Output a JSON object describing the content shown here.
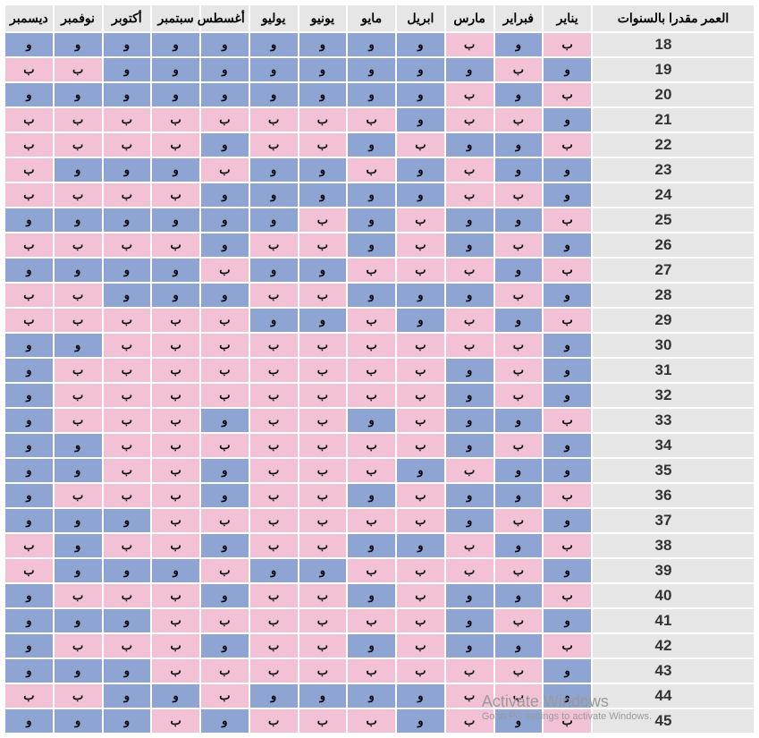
{
  "headers": {
    "age": "العمر مقدرا بالسنوات",
    "months": [
      "يناير",
      "فبراير",
      "مارس",
      "ابريل",
      "مايو",
      "يونيو",
      "يوليو",
      "أغسطس",
      "سبتمبر",
      "أكتوبر",
      "نوفمبر",
      "ديسمبر"
    ]
  },
  "labels": {
    "w": "و",
    "b": "ب"
  },
  "colors": {
    "header_bg": "#e6e6e6",
    "age_bg": "#e6e6e6",
    "w_cell": "#8ea4d2",
    "b_cell": "#f3c1d6",
    "page_bg": "#ffffff",
    "text": "#000000"
  },
  "rows": [
    {
      "age": "18",
      "cells": [
        "b",
        "w",
        "b",
        "w",
        "w",
        "w",
        "w",
        "w",
        "w",
        "w",
        "w",
        "w"
      ]
    },
    {
      "age": "19",
      "cells": [
        "w",
        "b",
        "w",
        "w",
        "w",
        "w",
        "w",
        "w",
        "w",
        "w",
        "b",
        "b"
      ]
    },
    {
      "age": "20",
      "cells": [
        "b",
        "w",
        "b",
        "w",
        "w",
        "w",
        "w",
        "w",
        "w",
        "w",
        "w",
        "w"
      ]
    },
    {
      "age": "21",
      "cells": [
        "w",
        "b",
        "b",
        "w",
        "b",
        "b",
        "b",
        "b",
        "b",
        "b",
        "b",
        "b"
      ]
    },
    {
      "age": "22",
      "cells": [
        "b",
        "w",
        "w",
        "b",
        "w",
        "b",
        "b",
        "w",
        "b",
        "b",
        "b",
        "b"
      ]
    },
    {
      "age": "23",
      "cells": [
        "w",
        "w",
        "b",
        "w",
        "b",
        "w",
        "w",
        "b",
        "w",
        "w",
        "w",
        "b"
      ]
    },
    {
      "age": "24",
      "cells": [
        "w",
        "b",
        "b",
        "w",
        "w",
        "w",
        "w",
        "w",
        "b",
        "b",
        "b",
        "b"
      ]
    },
    {
      "age": "25",
      "cells": [
        "b",
        "w",
        "w",
        "b",
        "w",
        "b",
        "w",
        "w",
        "w",
        "w",
        "w",
        "w"
      ]
    },
    {
      "age": "26",
      "cells": [
        "w",
        "b",
        "w",
        "b",
        "w",
        "b",
        "b",
        "w",
        "b",
        "b",
        "b",
        "b"
      ]
    },
    {
      "age": "27",
      "cells": [
        "b",
        "w",
        "b",
        "b",
        "b",
        "w",
        "w",
        "b",
        "w",
        "w",
        "w",
        "w"
      ]
    },
    {
      "age": "28",
      "cells": [
        "w",
        "b",
        "w",
        "w",
        "w",
        "b",
        "b",
        "w",
        "w",
        "w",
        "b",
        "b"
      ]
    },
    {
      "age": "29",
      "cells": [
        "b",
        "w",
        "b",
        "w",
        "b",
        "w",
        "w",
        "b",
        "b",
        "b",
        "b",
        "b"
      ]
    },
    {
      "age": "30",
      "cells": [
        "w",
        "b",
        "b",
        "b",
        "b",
        "b",
        "b",
        "b",
        "b",
        "b",
        "w",
        "w"
      ]
    },
    {
      "age": "31",
      "cells": [
        "w",
        "b",
        "w",
        "b",
        "b",
        "b",
        "b",
        "b",
        "b",
        "b",
        "b",
        "w"
      ]
    },
    {
      "age": "32",
      "cells": [
        "w",
        "b",
        "w",
        "b",
        "b",
        "b",
        "b",
        "b",
        "b",
        "b",
        "b",
        "w"
      ]
    },
    {
      "age": "33",
      "cells": [
        "b",
        "w",
        "w",
        "b",
        "w",
        "b",
        "b",
        "w",
        "b",
        "b",
        "b",
        "w"
      ]
    },
    {
      "age": "34",
      "cells": [
        "w",
        "b",
        "w",
        "b",
        "b",
        "b",
        "b",
        "b",
        "b",
        "b",
        "w",
        "w"
      ]
    },
    {
      "age": "35",
      "cells": [
        "w",
        "w",
        "b",
        "w",
        "b",
        "b",
        "b",
        "w",
        "b",
        "b",
        "w",
        "w"
      ]
    },
    {
      "age": "36",
      "cells": [
        "b",
        "w",
        "w",
        "b",
        "w",
        "b",
        "b",
        "w",
        "b",
        "b",
        "b",
        "w"
      ]
    },
    {
      "age": "37",
      "cells": [
        "w",
        "b",
        "w",
        "b",
        "b",
        "b",
        "b",
        "b",
        "b",
        "w",
        "w",
        "w"
      ]
    },
    {
      "age": "38",
      "cells": [
        "b",
        "w",
        "b",
        "w",
        "w",
        "b",
        "b",
        "w",
        "b",
        "b",
        "w",
        "b"
      ]
    },
    {
      "age": "39",
      "cells": [
        "w",
        "b",
        "b",
        "b",
        "b",
        "w",
        "w",
        "b",
        "w",
        "w",
        "w",
        "b"
      ]
    },
    {
      "age": "40",
      "cells": [
        "b",
        "w",
        "w",
        "b",
        "w",
        "b",
        "b",
        "w",
        "b",
        "b",
        "b",
        "w"
      ]
    },
    {
      "age": "41",
      "cells": [
        "w",
        "b",
        "w",
        "b",
        "b",
        "b",
        "b",
        "b",
        "b",
        "w",
        "w",
        "w"
      ]
    },
    {
      "age": "42",
      "cells": [
        "b",
        "w",
        "w",
        "b",
        "w",
        "b",
        "b",
        "w",
        "b",
        "b",
        "b",
        "w"
      ]
    },
    {
      "age": "43",
      "cells": [
        "w",
        "b",
        "b",
        "b",
        "b",
        "b",
        "b",
        "b",
        "b",
        "w",
        "w",
        "w"
      ]
    },
    {
      "age": "44",
      "cells": [
        "w",
        "b",
        "b",
        "w",
        "w",
        "w",
        "w",
        "b",
        "w",
        "w",
        "b",
        "b"
      ]
    },
    {
      "age": "45",
      "cells": [
        "b",
        "w",
        "b",
        "w",
        "b",
        "b",
        "b",
        "w",
        "b",
        "w",
        "w",
        "w"
      ]
    }
  ],
  "watermark": {
    "title": "Activate Windows",
    "sub": "Go to PC settings to activate Windows."
  }
}
